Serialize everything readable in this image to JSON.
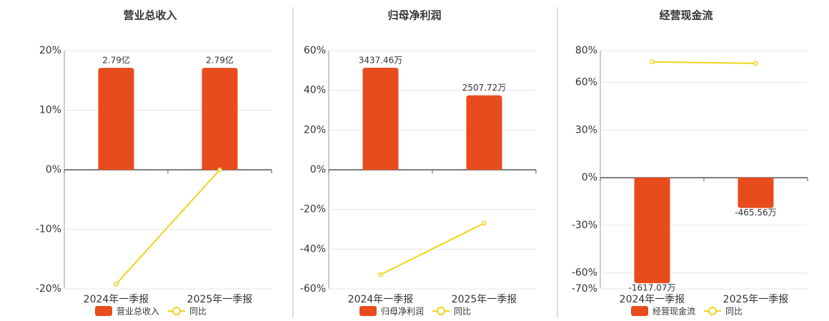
{
  "chart_data": [
    {
      "type": "bar",
      "title": "营业总收入",
      "categories": [
        "2024年一季报",
        "2025年一季报"
      ],
      "series": [
        {
          "name": "营业总收入",
          "type": "bar",
          "axis": "y2",
          "color": "#e84c1c",
          "values": [
            2.79,
            2.79
          ],
          "value_labels": [
            "2.79亿",
            "2.79亿"
          ]
        },
        {
          "name": "同比",
          "type": "line",
          "color": "#f2d21b",
          "values": [
            -19.2,
            0
          ]
        }
      ],
      "ylim": [
        -20,
        20
      ],
      "yticks": [
        {
          "value": -20,
          "label": "-20%"
        },
        {
          "value": -10,
          "label": "-10%"
        },
        {
          "value": 0,
          "label": "0%"
        },
        {
          "value": 10,
          "label": "10%"
        },
        {
          "value": 20,
          "label": "20%"
        }
      ],
      "y2lim": [
        -3.26,
        3.26
      ],
      "grid": true
    },
    {
      "type": "bar",
      "title": "归母净利润",
      "categories": [
        "2024年一季报",
        "2025年一季报"
      ],
      "series": [
        {
          "name": "归母净利润",
          "type": "bar",
          "axis": "y2",
          "color": "#e84c1c",
          "values": [
            3437.46,
            2507.72
          ],
          "value_labels": [
            "3437.46万",
            "2507.72万"
          ]
        },
        {
          "name": "同比",
          "type": "line",
          "color": "#f2d21b",
          "values": [
            -52.8,
            -26.9
          ]
        }
      ],
      "ylim": [
        -60,
        60
      ],
      "yticks": [
        {
          "value": -60,
          "label": "-60%"
        },
        {
          "value": -40,
          "label": "-40%"
        },
        {
          "value": -20,
          "label": "-20%"
        },
        {
          "value": 0,
          "label": "0%"
        },
        {
          "value": 20,
          "label": "20%"
        },
        {
          "value": 40,
          "label": "40%"
        },
        {
          "value": 60,
          "label": "60%"
        }
      ],
      "y2lim": [
        -4014,
        4014
      ],
      "grid": true
    },
    {
      "type": "bar",
      "title": "经营现金流",
      "categories": [
        "2024年一季报",
        "2025年一季报"
      ],
      "series": [
        {
          "name": "经营现金流",
          "type": "bar",
          "axis": "y2",
          "color": "#e84c1c",
          "values": [
            -1617.07,
            -465.56
          ],
          "value_labels": [
            "-1617.07万",
            "-465.56万"
          ]
        },
        {
          "name": "同比",
          "type": "line",
          "color": "#f2d21b",
          "values": [
            72.9,
            72.0
          ]
        }
      ],
      "ylim": [
        -70,
        80
      ],
      "yticks": [
        {
          "value": -70,
          "label": "-70%"
        },
        {
          "value": -60,
          "label": "-60%"
        },
        {
          "value": -30,
          "label": "-30%"
        },
        {
          "value": 0,
          "label": "0%"
        },
        {
          "value": 30,
          "label": "30%"
        },
        {
          "value": 60,
          "label": "60%"
        },
        {
          "value": 80,
          "label": "80%"
        }
      ],
      "y2lim": [
        -1705,
        1945
      ],
      "grid": true
    }
  ]
}
